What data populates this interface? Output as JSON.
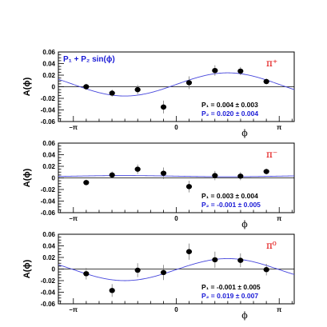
{
  "chart_data": [
    {
      "type": "scatter",
      "particle": "π⁺",
      "fit_label": "P₁ + P₂ sin(ϕ)",
      "ylabel": "A(ϕ)",
      "xlabel": "ϕ",
      "xlim": [
        -3.6,
        3.6
      ],
      "ylim": [
        -0.06,
        0.06
      ],
      "yticks": [
        "0.06",
        "0.04",
        "0.02",
        "0",
        "-0.02",
        "-0.04",
        "-0.06"
      ],
      "xticks": [
        {
          "label": "–π",
          "value": -3.14159
        },
        {
          "label": "0",
          "value": 0
        },
        {
          "label": "π",
          "value": 3.14159
        }
      ],
      "points": [
        {
          "x": -2.75,
          "y": 0.0,
          "err": 0.005
        },
        {
          "x": -1.96,
          "y": -0.011,
          "err": 0.006
        },
        {
          "x": -1.18,
          "y": -0.005,
          "err": 0.008
        },
        {
          "x": -0.39,
          "y": -0.035,
          "err": 0.011
        },
        {
          "x": 0.39,
          "y": 0.007,
          "err": 0.011
        },
        {
          "x": 1.18,
          "y": 0.028,
          "err": 0.009
        },
        {
          "x": 1.96,
          "y": 0.027,
          "err": 0.007
        },
        {
          "x": 2.75,
          "y": 0.009,
          "err": 0.005
        }
      ],
      "fit": {
        "p1": 0.004,
        "p2": 0.02
      },
      "results": {
        "p1": "P₁ = 0.004 ± 0.003",
        "p2": "P₂ = 0.020 ± 0.004"
      },
      "colors": {
        "points": "#000000",
        "fit": "#4646dc",
        "p1": "#000000",
        "p2": "#1a1ad6",
        "particle": "#e00000"
      }
    },
    {
      "type": "scatter",
      "particle": "π⁻",
      "ylabel": "A(ϕ)",
      "xlabel": "ϕ",
      "xlim": [
        -3.6,
        3.6
      ],
      "ylim": [
        -0.06,
        0.06
      ],
      "yticks": [
        "0.06",
        "0.04",
        "0.02",
        "0",
        "-0.02",
        "-0.04",
        "-0.06"
      ],
      "xticks": [
        {
          "label": "–π",
          "value": -3.14159
        },
        {
          "label": "0",
          "value": 0
        },
        {
          "label": "π",
          "value": 3.14159
        }
      ],
      "points": [
        {
          "x": -2.75,
          "y": -0.008,
          "err": 0.005
        },
        {
          "x": -1.96,
          "y": 0.005,
          "err": 0.006
        },
        {
          "x": -1.18,
          "y": 0.015,
          "err": 0.008
        },
        {
          "x": -0.39,
          "y": 0.008,
          "err": 0.01
        },
        {
          "x": 0.39,
          "y": -0.015,
          "err": 0.01
        },
        {
          "x": 1.18,
          "y": 0.004,
          "err": 0.008
        },
        {
          "x": 1.96,
          "y": 0.003,
          "err": 0.007
        },
        {
          "x": 2.75,
          "y": 0.011,
          "err": 0.005
        }
      ],
      "fit": {
        "p1": 0.003,
        "p2": -0.001
      },
      "results": {
        "p1": "P₁ = 0.003 ± 0.004",
        "p2": "P₂ = -0.001 ± 0.005"
      },
      "colors": {
        "points": "#000000",
        "fit": "#4646dc",
        "p1": "#000000",
        "p2": "#1a1ad6",
        "particle": "#e00000"
      }
    },
    {
      "type": "scatter",
      "particle": "π⁰",
      "ylabel": "A(ϕ)",
      "xlabel": "ϕ",
      "xlim": [
        -3.6,
        3.6
      ],
      "ylim": [
        -0.06,
        0.06
      ],
      "yticks": [
        "0.06",
        "0.04",
        "0.02",
        "0",
        "-0.02",
        "-0.04",
        "-0.06"
      ],
      "xticks": [
        {
          "label": "–π",
          "value": -3.14159
        },
        {
          "label": "0",
          "value": 0
        },
        {
          "label": "π",
          "value": 3.14159
        }
      ],
      "points": [
        {
          "x": -2.75,
          "y": -0.008,
          "err": 0.01
        },
        {
          "x": -1.96,
          "y": -0.037,
          "err": 0.011
        },
        {
          "x": -1.18,
          "y": -0.002,
          "err": 0.012
        },
        {
          "x": -0.39,
          "y": -0.006,
          "err": 0.013
        },
        {
          "x": 0.39,
          "y": 0.03,
          "err": 0.014
        },
        {
          "x": 1.18,
          "y": 0.016,
          "err": 0.014
        },
        {
          "x": 1.96,
          "y": 0.015,
          "err": 0.012
        },
        {
          "x": 2.75,
          "y": -0.001,
          "err": 0.01
        }
      ],
      "fit": {
        "p1": -0.001,
        "p2": 0.019
      },
      "results": {
        "p1": "P₁ = -0.001 ± 0.005",
        "p2": "P₂ = 0.019 ± 0.007"
      },
      "colors": {
        "points": "#000000",
        "fit": "#4646dc",
        "p1": "#000000",
        "p2": "#1a1ad6",
        "particle": "#e00000"
      }
    }
  ]
}
